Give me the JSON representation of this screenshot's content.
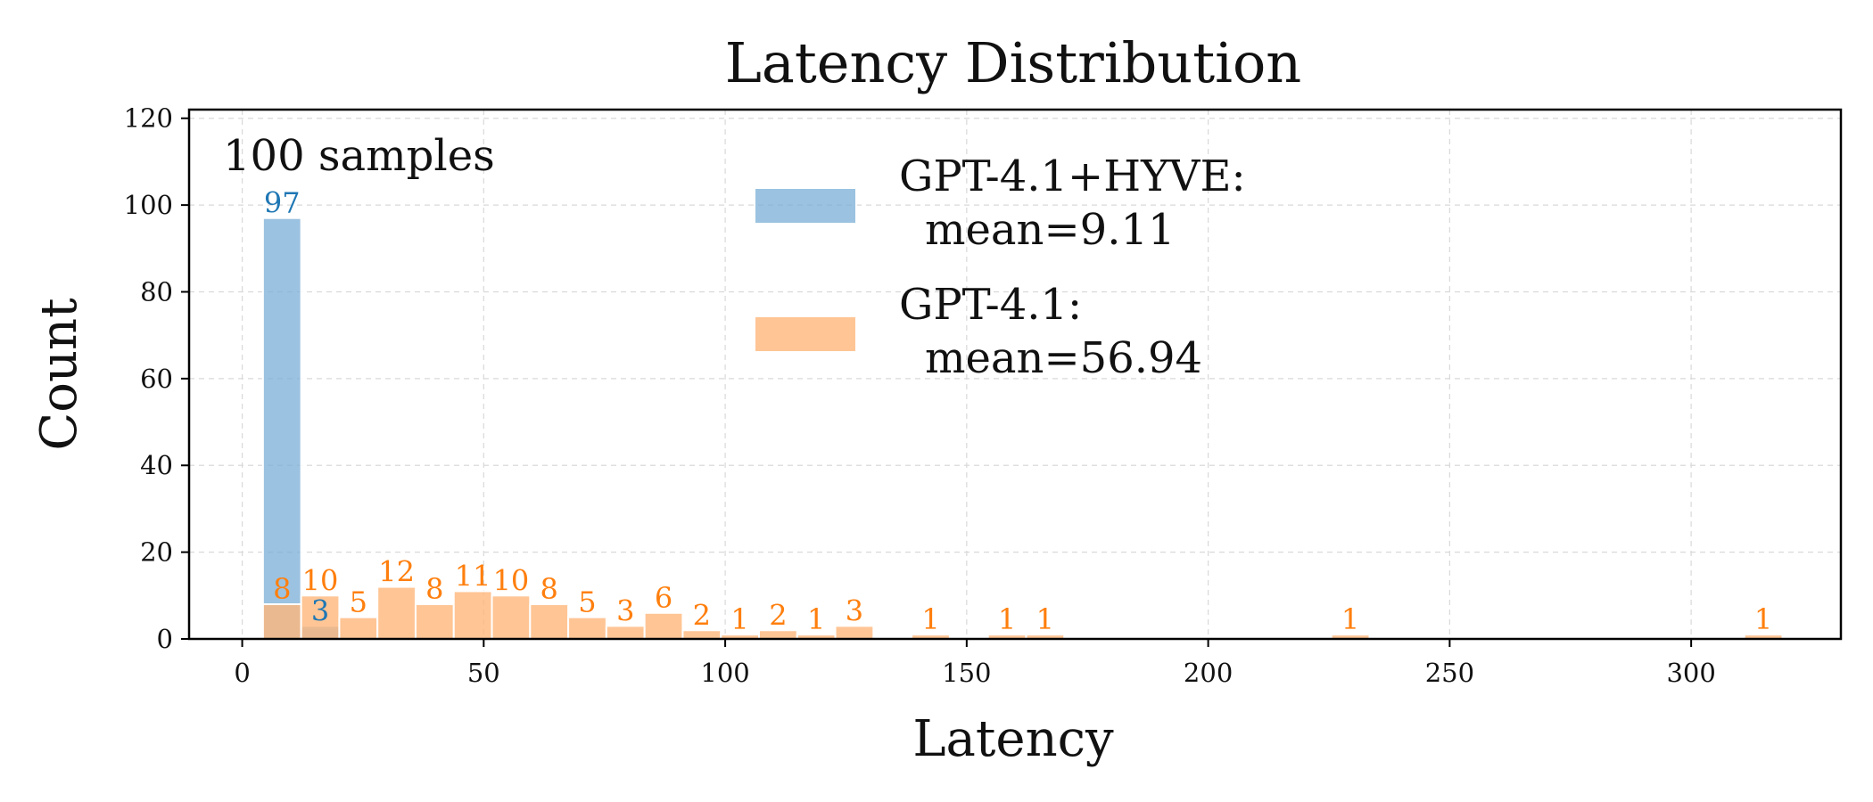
{
  "chart_data": {
    "type": "bar",
    "title": "Latency Distribution",
    "xlabel": "Latency",
    "ylabel": "Count",
    "xlim": [
      -11,
      331
    ],
    "ylim": [
      0,
      122
    ],
    "xticks": [
      0,
      50,
      100,
      150,
      200,
      250,
      300
    ],
    "yticks": [
      0,
      20,
      40,
      60,
      80,
      100,
      120
    ],
    "grid": true,
    "legend_position": "top-center",
    "annotation": "100 samples",
    "bin_width": 7.9,
    "series": [
      {
        "name": "GPT-4.1+HYVE",
        "legend_label": "GPT-4.1+HYVE:",
        "mean_label": "mean=9.11",
        "color": "#7aaed6",
        "label_color": "#1f77b4",
        "bins": [
          {
            "start": 4.3,
            "count": 97
          },
          {
            "start": 12.2,
            "count": 3
          }
        ]
      },
      {
        "name": "GPT-4.1",
        "legend_label": "GPT-4.1:",
        "mean_label": "mean=56.94",
        "color": "#ffb77a",
        "label_color": "#ff7f0e",
        "bins": [
          {
            "start": 4.3,
            "count": 8
          },
          {
            "start": 12.2,
            "count": 10
          },
          {
            "start": 20.1,
            "count": 5
          },
          {
            "start": 28.0,
            "count": 12
          },
          {
            "start": 35.9,
            "count": 8
          },
          {
            "start": 43.8,
            "count": 11
          },
          {
            "start": 51.7,
            "count": 10
          },
          {
            "start": 59.6,
            "count": 8
          },
          {
            "start": 67.5,
            "count": 5
          },
          {
            "start": 75.4,
            "count": 3
          },
          {
            "start": 83.3,
            "count": 6
          },
          {
            "start": 91.2,
            "count": 2
          },
          {
            "start": 99.1,
            "count": 1
          },
          {
            "start": 107.0,
            "count": 2
          },
          {
            "start": 114.9,
            "count": 1
          },
          {
            "start": 122.8,
            "count": 3
          },
          {
            "start": 138.6,
            "count": 1
          },
          {
            "start": 154.4,
            "count": 1
          },
          {
            "start": 162.3,
            "count": 1
          },
          {
            "start": 225.5,
            "count": 1
          },
          {
            "start": 311.0,
            "count": 1
          }
        ]
      }
    ]
  }
}
